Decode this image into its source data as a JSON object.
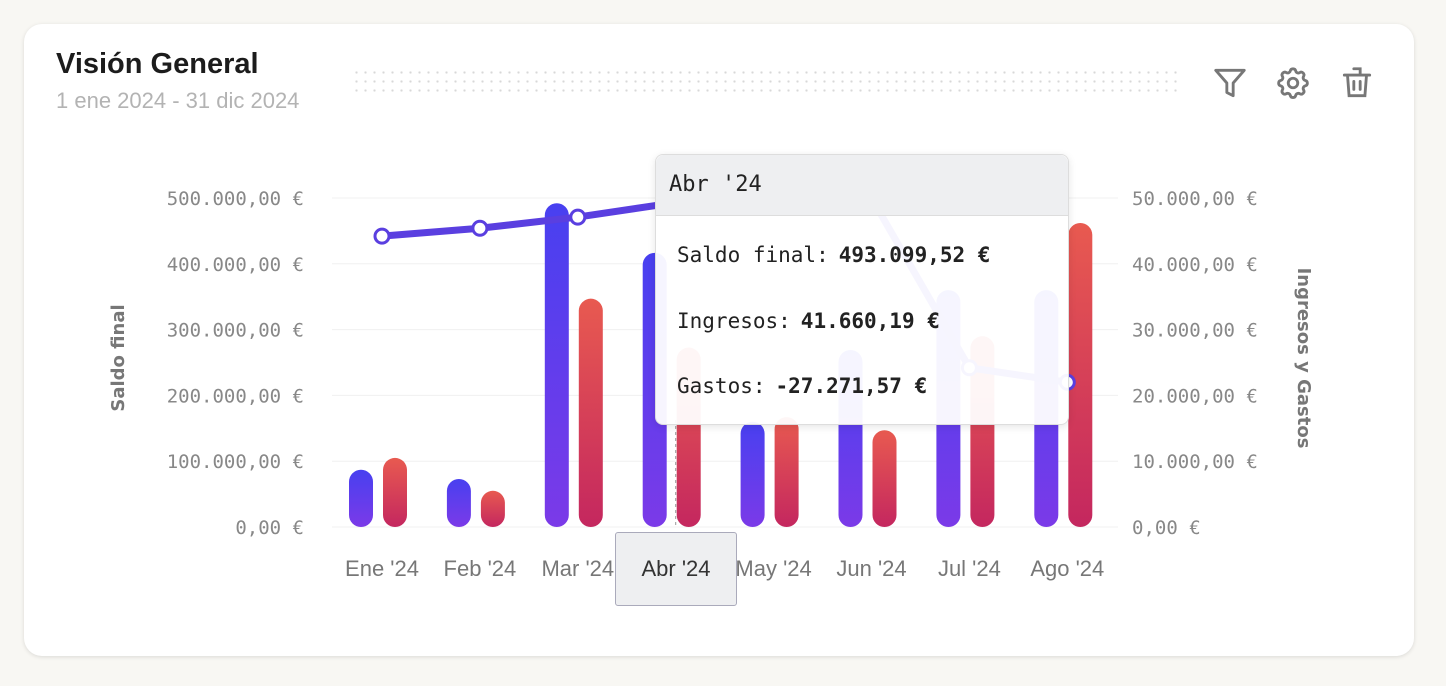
{
  "header": {
    "title": "Visión General",
    "date_range": "1 ene 2024 - 31 dic 2024"
  },
  "actions": {
    "filter_icon": "filter-icon",
    "settings_icon": "gear-icon",
    "delete_icon": "trash-icon"
  },
  "tooltip": {
    "title": "Abr '24",
    "rows": [
      {
        "label": "Saldo final:",
        "value": "493.099,52 €"
      },
      {
        "label": "Ingresos:",
        "value": "41.660,19 €"
      },
      {
        "label": "Gastos:",
        "value": "-27.271,57 €"
      }
    ]
  },
  "chart_data": {
    "type": "bar",
    "categories": [
      "Ene '24",
      "Feb '24",
      "Mar '24",
      "Abr '24",
      "May '24",
      "Jun '24",
      "Jul '24",
      "Ago '24"
    ],
    "highlighted_category": "Abr '24",
    "ylabel_left": "Saldo final",
    "ylabel_right": "Ingresos y Gastos",
    "ylim_left": [
      0,
      500000
    ],
    "ylim_right": [
      0,
      50000
    ],
    "yticks_left": [
      "0,00 €",
      "100.000,00 €",
      "200.000,00 €",
      "300.000,00 €",
      "400.000,00 €",
      "500.000,00 €"
    ],
    "yticks_right": [
      "0,00 €",
      "10.000,00 €",
      "20.000,00 €",
      "30.000,00 €",
      "40.000,00 €",
      "50.000,00 €"
    ],
    "grid": true,
    "series": [
      {
        "name": "Ingresos",
        "type": "bar",
        "axis": "right",
        "color": "#4a40f0",
        "values": [
          8700,
          7300,
          49200,
          41660.19,
          16000,
          26900,
          36000,
          36000
        ]
      },
      {
        "name": "Gastos",
        "type": "bar",
        "axis": "right",
        "color": "#e4554f",
        "values": [
          10500,
          5500,
          34700,
          27271.57,
          16700,
          14700,
          29000,
          46200
        ]
      },
      {
        "name": "Saldo final",
        "type": "line",
        "axis": "left",
        "color": "#5a3fe0",
        "values": [
          442000,
          454000,
          471000,
          493099.52,
          497000,
          500000,
          242000,
          220000
        ]
      }
    ]
  }
}
